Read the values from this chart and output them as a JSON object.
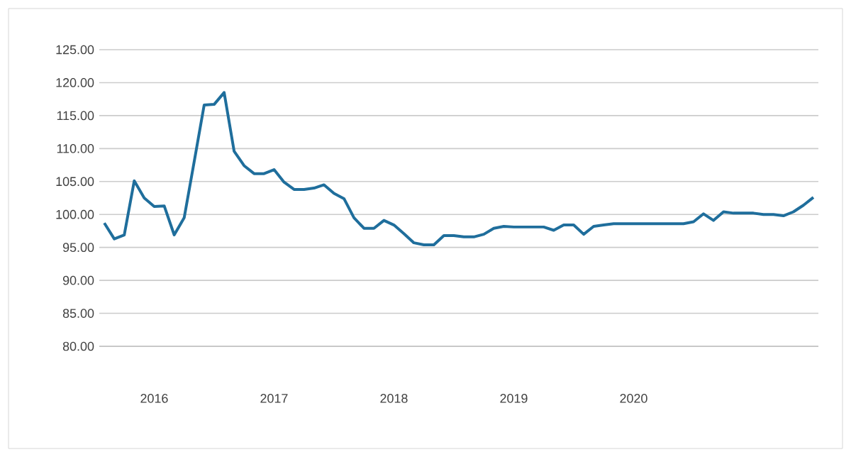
{
  "chart_data": {
    "type": "line",
    "categories": [
      null,
      null,
      null,
      null,
      null,
      "2016",
      null,
      null,
      null,
      null,
      null,
      null,
      null,
      null,
      null,
      null,
      null,
      "2017",
      null,
      null,
      null,
      null,
      null,
      null,
      null,
      null,
      null,
      null,
      null,
      "2018",
      null,
      null,
      null,
      null,
      null,
      null,
      null,
      null,
      null,
      null,
      null,
      "2019",
      null,
      null,
      null,
      null,
      null,
      null,
      null,
      null,
      null,
      null,
      null,
      "2020",
      null,
      null,
      null,
      null,
      null,
      null,
      null,
      null,
      null,
      null,
      null,
      null,
      null,
      null,
      null,
      null,
      null,
      null
    ],
    "series": [
      {
        "color": "#1f6e9c",
        "values": [
          98.7,
          96.3,
          96.9,
          105.1,
          102.5,
          101.2,
          101.3,
          96.9,
          99.5,
          108,
          116.6,
          116.7,
          118.5,
          109.6,
          107.4,
          106.2,
          106.2,
          106.8,
          104.9,
          103.8,
          103.8,
          104,
          104.5,
          103.2,
          102.4,
          99.5,
          97.9,
          97.9,
          99.1,
          98.4,
          97.1,
          95.7,
          95.4,
          95.4,
          96.8,
          96.8,
          96.6,
          96.6,
          97,
          97.9,
          98.2,
          98.1,
          98.1,
          98.1,
          98.1,
          97.6,
          98.4,
          98.4,
          97,
          98.2,
          98.4,
          98.6,
          98.6,
          98.6,
          98.6,
          98.6,
          98.6,
          98.6,
          98.6,
          98.9,
          100.1,
          99.1,
          100.4,
          100.2,
          100.2,
          100.2,
          100,
          100,
          99.8,
          100.4,
          101.4,
          102.6
        ]
      }
    ],
    "ylim": [
      80,
      125
    ],
    "yticks": [
      {
        "value": 80,
        "label": "80.00"
      },
      {
        "value": 85,
        "label": "85.00"
      },
      {
        "value": 90,
        "label": "90.00"
      },
      {
        "value": 95,
        "label": "95.00"
      },
      {
        "value": 100,
        "label": "100.00"
      },
      {
        "value": 105,
        "label": "105.00"
      },
      {
        "value": 110,
        "label": "110.00"
      },
      {
        "value": 115,
        "label": "115.00"
      },
      {
        "value": 120,
        "label": "120.00"
      },
      {
        "value": 125,
        "label": "125.00"
      }
    ],
    "grid": "y",
    "legend": false,
    "marker": "none",
    "line_style": "solid"
  }
}
